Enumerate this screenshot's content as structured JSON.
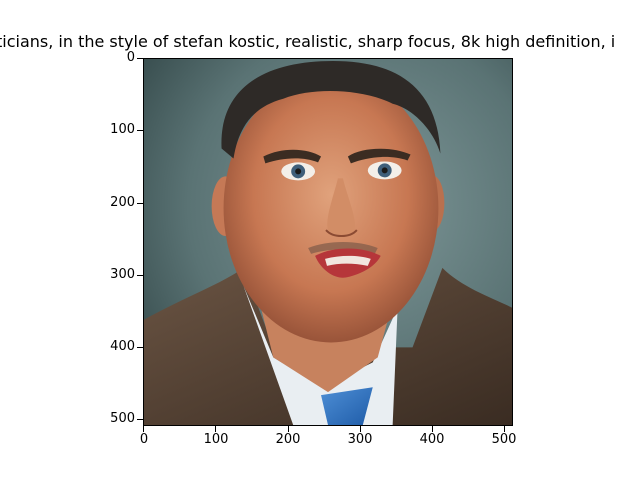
{
  "title": "ticians,  in the style of stefan kostic, realistic, sharp focus, 8k high definition, i",
  "y_ticks": [
    {
      "label": "0"
    },
    {
      "label": "100"
    },
    {
      "label": "200"
    },
    {
      "label": "300"
    },
    {
      "label": "400"
    },
    {
      "label": "500"
    }
  ],
  "x_ticks": [
    {
      "label": "0"
    },
    {
      "label": "100"
    },
    {
      "label": "200"
    },
    {
      "label": "300"
    },
    {
      "label": "400"
    },
    {
      "label": "500"
    }
  ]
}
